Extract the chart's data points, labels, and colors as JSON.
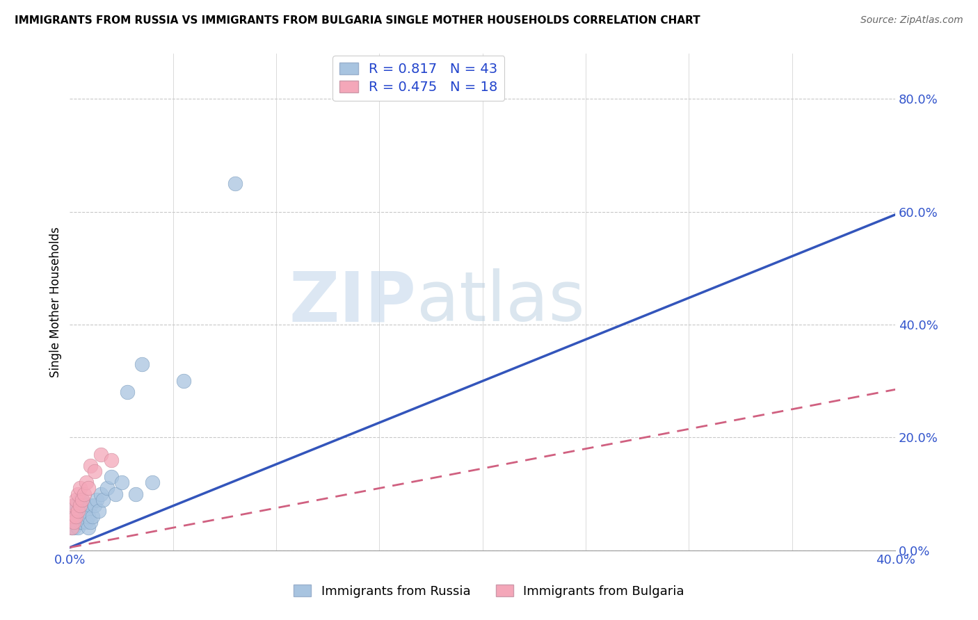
{
  "title": "IMMIGRANTS FROM RUSSIA VS IMMIGRANTS FROM BULGARIA SINGLE MOTHER HOUSEHOLDS CORRELATION CHART",
  "source": "Source: ZipAtlas.com",
  "ylabel": "Single Mother Households",
  "legend_russia_r": "0.817",
  "legend_russia_n": "43",
  "legend_bulgaria_r": "0.475",
  "legend_bulgaria_n": "18",
  "russia_color": "#a8c4e0",
  "russia_line_color": "#3355bb",
  "bulgaria_color": "#f4a7b9",
  "bulgaria_line_color": "#d06080",
  "legend_text_color": "#2244cc",
  "watermark_zip": "ZIP",
  "watermark_atlas": "atlas",
  "russia_scatter_x": [
    0.001,
    0.001,
    0.001,
    0.002,
    0.002,
    0.002,
    0.002,
    0.003,
    0.003,
    0.003,
    0.004,
    0.004,
    0.004,
    0.005,
    0.005,
    0.005,
    0.006,
    0.006,
    0.006,
    0.007,
    0.007,
    0.008,
    0.008,
    0.009,
    0.009,
    0.01,
    0.01,
    0.011,
    0.012,
    0.013,
    0.014,
    0.015,
    0.016,
    0.018,
    0.02,
    0.022,
    0.025,
    0.028,
    0.032,
    0.035,
    0.04,
    0.055,
    0.08
  ],
  "russia_scatter_y": [
    0.04,
    0.05,
    0.06,
    0.04,
    0.05,
    0.07,
    0.08,
    0.05,
    0.06,
    0.08,
    0.04,
    0.06,
    0.07,
    0.05,
    0.07,
    0.09,
    0.05,
    0.07,
    0.09,
    0.06,
    0.08,
    0.05,
    0.07,
    0.04,
    0.06,
    0.05,
    0.08,
    0.06,
    0.08,
    0.09,
    0.07,
    0.1,
    0.09,
    0.11,
    0.13,
    0.1,
    0.12,
    0.28,
    0.1,
    0.33,
    0.12,
    0.3,
    0.65
  ],
  "bulgaria_scatter_x": [
    0.001,
    0.001,
    0.002,
    0.002,
    0.003,
    0.003,
    0.004,
    0.004,
    0.005,
    0.005,
    0.006,
    0.007,
    0.008,
    0.009,
    0.01,
    0.012,
    0.015,
    0.02
  ],
  "bulgaria_scatter_y": [
    0.04,
    0.06,
    0.05,
    0.08,
    0.06,
    0.09,
    0.07,
    0.1,
    0.08,
    0.11,
    0.09,
    0.1,
    0.12,
    0.11,
    0.15,
    0.14,
    0.17,
    0.16
  ],
  "xmin": 0.0,
  "xmax": 0.4,
  "ymin": 0.0,
  "ymax": 0.88,
  "russia_line_x0": 0.0,
  "russia_line_x1": 0.4,
  "russia_line_y0": 0.005,
  "russia_line_y1": 0.595,
  "bulgaria_line_x0": 0.0,
  "bulgaria_line_x1": 0.4,
  "bulgaria_line_y0": 0.005,
  "bulgaria_line_y1": 0.285
}
